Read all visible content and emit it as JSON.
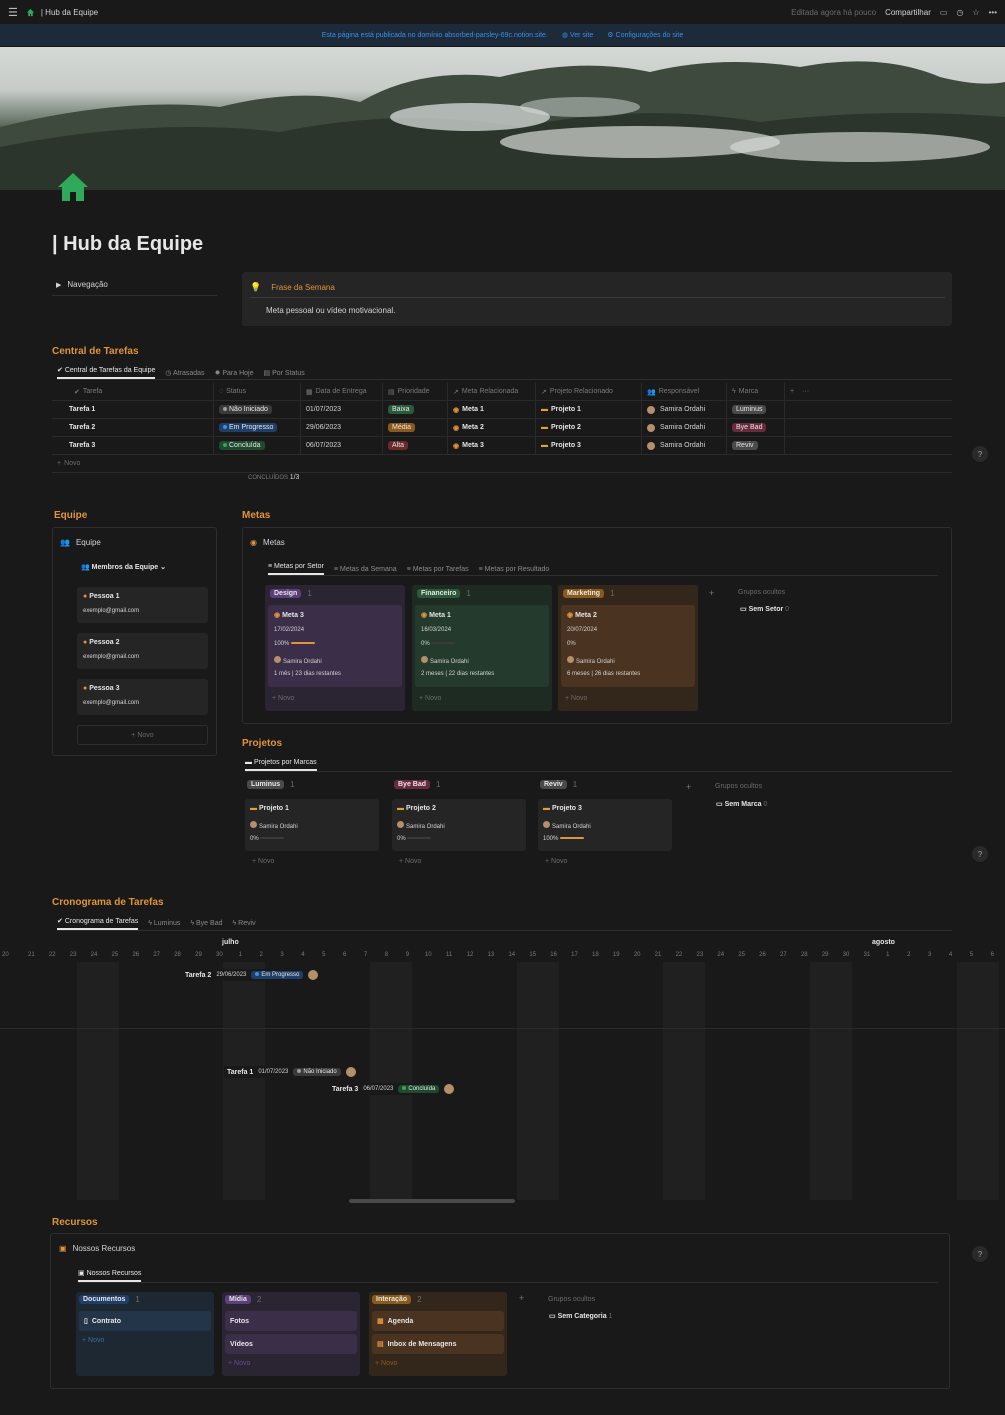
{
  "topbar": {
    "breadcrumb": "| Hub da Equipe",
    "edited": "Editada agora há pouco",
    "share": "Compartilhar"
  },
  "banner": {
    "notice": "Esta página está publicada no domínio absorbed-parsley-69c.notion.site.",
    "view_site": "Ver site",
    "site_settings": "Configurações do site"
  },
  "page": {
    "title": "| Hub da Equipe",
    "icon": "house-icon",
    "accent": "#e0943b"
  },
  "navigation": {
    "label": "Navegação"
  },
  "callout": {
    "title": "Frase da Semana",
    "text": "Meta pessoal ou vídeo motivacional."
  },
  "tasks": {
    "heading": "Central de Tarefas",
    "tabs": [
      "Central de Tarefas da Equipe",
      "Atrasadas",
      "Para Hoje",
      "Por Status"
    ],
    "columns": [
      "Tarefa",
      "Status",
      "Data de Entrega",
      "Prioridade",
      "Meta Relacionada",
      "Projeto Relacionado",
      "Responsável",
      "Marca"
    ],
    "rows": [
      {
        "task": "Tarefa 1",
        "status": "Não Iniciado",
        "date": "01/07/2023",
        "priority": "Baixa",
        "goal": "Meta 1",
        "project": "Projeto 1",
        "owner": "Samira Ordahi",
        "brand": "Luminus"
      },
      {
        "task": "Tarefa 2",
        "status": "Em Progresso",
        "date": "29/06/2023",
        "priority": "Média",
        "goal": "Meta 2",
        "project": "Projeto 2",
        "owner": "Samira Ordahi",
        "brand": "Bye Bad"
      },
      {
        "task": "Tarefa 3",
        "status": "Concluída",
        "date": "06/07/2023",
        "priority": "Alta",
        "goal": "Meta 3",
        "project": "Projeto 3",
        "owner": "Samira Ordahi",
        "brand": "Reviv"
      }
    ],
    "new": "Novo",
    "summary_label": "CONCLUÍDOS",
    "summary_value": "1/3"
  },
  "team": {
    "heading": "Equipe",
    "title": "Equipe",
    "view": "Membros da Equipe",
    "members": [
      {
        "name": "Pessoa 1",
        "email": "exemplo@gmail.com"
      },
      {
        "name": "Pessoa 2",
        "email": "exemplo@gmail.com"
      },
      {
        "name": "Pessoa 3",
        "email": "exemplo@gmail.com"
      }
    ],
    "new": "Novo"
  },
  "goals": {
    "heading": "Metas",
    "title": "Metas",
    "tabs": [
      "Metas por Setor",
      "Metas da Semana",
      "Metas por Tarefas",
      "Metas por Resultado"
    ],
    "groups": [
      {
        "label": "Design",
        "count": "1",
        "card": {
          "name": "Meta 3",
          "date": "17/02/2024",
          "progress": "100%",
          "progress_value": 1.0,
          "owner": "Samira Ordahi",
          "remaining": "1 mês | 23 dias restantes"
        }
      },
      {
        "label": "Financeiro",
        "count": "1",
        "card": {
          "name": "Meta 1",
          "date": "16/03/2024",
          "progress": "0%",
          "progress_value": 0,
          "owner": "Samira Ordahi",
          "remaining": "2 meses | 22 dias restantes"
        }
      },
      {
        "label": "Marketing",
        "count": "1",
        "card": {
          "name": "Meta 2",
          "date": "20/07/2024",
          "progress": "0%",
          "progress_value": 0,
          "owner": "Samira Ordahi",
          "remaining": "6 meses | 26 dias restantes"
        }
      }
    ],
    "hidden_label": "Grupos ocultos",
    "hidden_item": "Sem Setor",
    "hidden_count": "0",
    "new": "Novo"
  },
  "projects": {
    "heading": "Projetos",
    "tab": "Projetos por Marcas",
    "groups": [
      {
        "label": "Luminus",
        "count": "1",
        "card": {
          "name": "Projeto 1",
          "owner": "Samira Ordahi",
          "progress": "0%",
          "progress_value": 0
        }
      },
      {
        "label": "Bye Bad",
        "count": "1",
        "card": {
          "name": "Projeto 2",
          "owner": "Samira Ordahi",
          "progress": "0%",
          "progress_value": 0
        }
      },
      {
        "label": "Reviv",
        "count": "1",
        "card": {
          "name": "Projeto 3",
          "owner": "Samira Ordahi",
          "progress": "100%",
          "progress_value": 1.0
        }
      }
    ],
    "hidden_label": "Grupos ocultos",
    "hidden_item": "Sem Marca",
    "hidden_count": "0",
    "new": "Novo"
  },
  "timeline": {
    "heading": "Cronograma de Tarefas",
    "tabs": [
      "Cronograma de Tarefas",
      "Luminus",
      "Bye Bad",
      "Reviv"
    ],
    "months": [
      "julho",
      "agosto"
    ],
    "days": [
      "20",
      "21",
      "22",
      "23",
      "24",
      "25",
      "26",
      "27",
      "28",
      "29",
      "30",
      "1",
      "2",
      "3",
      "4",
      "5",
      "6",
      "7",
      "8",
      "9",
      "10",
      "11",
      "12",
      "13",
      "14",
      "15",
      "16",
      "17",
      "18",
      "19",
      "20",
      "21",
      "22",
      "23",
      "24",
      "25",
      "26",
      "27",
      "28",
      "29",
      "30",
      "31",
      "1",
      "2",
      "3",
      "4",
      "5",
      "6"
    ],
    "items": [
      {
        "task": "Tarefa 2",
        "date": "29/06/2023",
        "status": "Em Progresso"
      },
      {
        "task": "Tarefa 1",
        "date": "01/07/2023",
        "status": "Não Iniciado"
      },
      {
        "task": "Tarefa 3",
        "date": "06/07/2023",
        "status": "Concluída"
      }
    ]
  },
  "resources": {
    "heading": "Recursos",
    "title": "Nossos Recursos",
    "tab": "Nossos Recursos",
    "groups": [
      {
        "label": "Documentos",
        "count": "1",
        "items": [
          "Contrato"
        ]
      },
      {
        "label": "Mídia",
        "count": "2",
        "items": [
          "Fotos",
          "Vídeos"
        ]
      },
      {
        "label": "Interação",
        "count": "2",
        "items": [
          "Agenda",
          "Inbox de Mensagens"
        ]
      }
    ],
    "hidden_label": "Grupos ocultos",
    "hidden_item": "Sem Categoria",
    "hidden_count": "1",
    "new": "Novo"
  },
  "help": "?"
}
